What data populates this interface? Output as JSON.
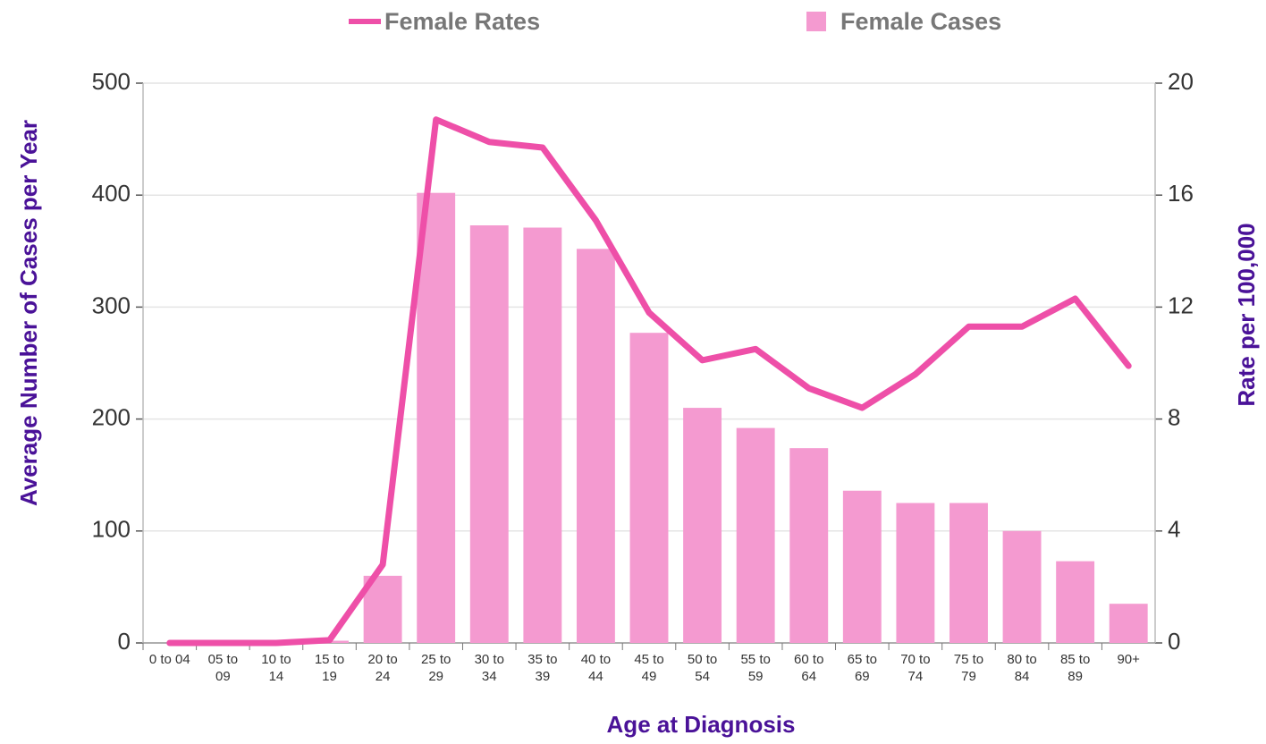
{
  "chart_data": {
    "type": "bar",
    "x_label": "Age at Diagnosis",
    "y_label": "Average Number of Cases per Year",
    "y2_label": "Rate per 100,000",
    "categories": [
      "0 to 04",
      "05 to 09",
      "10 to 14",
      "15 to 19",
      "20 to 24",
      "25 to 29",
      "30 to 34",
      "35 to 39",
      "40 to 44",
      "45 to 49",
      "50 to 54",
      "55 to 59",
      "60 to 64",
      "65 to 69",
      "70 to 74",
      "75 to 79",
      "80 to 84",
      "85 to 89",
      "90+"
    ],
    "series": [
      {
        "name": "Female Rates",
        "type": "line",
        "axis": "y2",
        "color": "#ee4fa8",
        "values": [
          0,
          0,
          0,
          0.1,
          2.8,
          18.7,
          17.9,
          17.7,
          15.1,
          11.8,
          10.1,
          10.5,
          9.1,
          8.4,
          9.6,
          11.3,
          11.3,
          12.3,
          9.9
        ]
      },
      {
        "name": "Female Cases",
        "type": "bar",
        "color": "#f49ad0",
        "values": [
          0,
          0,
          0,
          2,
          60,
          402,
          373,
          371,
          352,
          277,
          210,
          192,
          174,
          136,
          125,
          125,
          100,
          73,
          35
        ]
      }
    ],
    "ylim": [
      0,
      500
    ],
    "yticks": [
      0,
      100,
      200,
      300,
      400,
      500
    ],
    "y2lim": [
      0,
      20
    ],
    "y2ticks": [
      0,
      4,
      8,
      12,
      16,
      20
    ],
    "grid": true
  }
}
